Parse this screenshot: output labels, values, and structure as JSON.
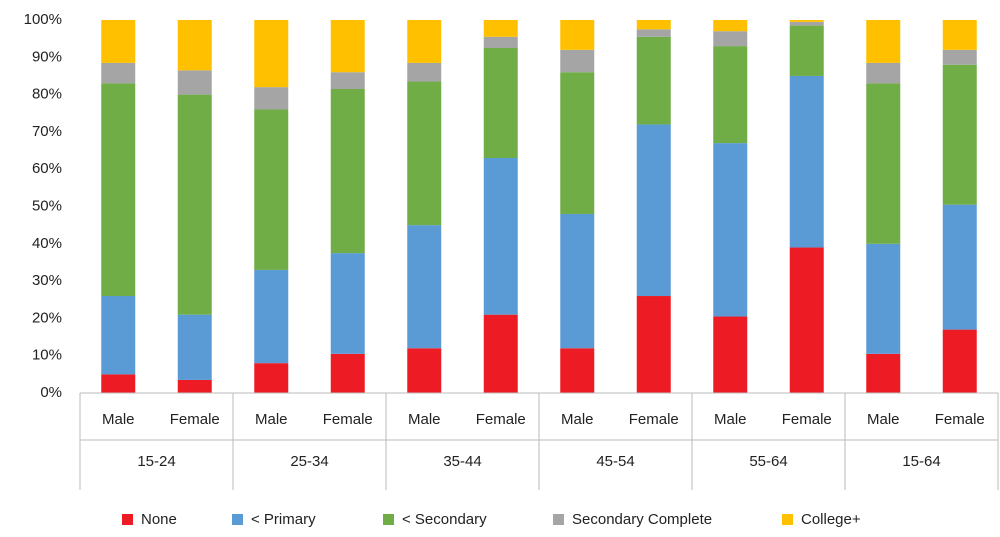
{
  "chart_data": {
    "type": "stacked_bar",
    "categories": [
      "Male",
      "Female",
      "Male",
      "Female",
      "Male",
      "Female",
      "Male",
      "Female",
      "Male",
      "Female",
      "Male",
      "Female"
    ],
    "groups": [
      "15-24",
      "25-34",
      "35-44",
      "45-54",
      "55-64",
      "15-64"
    ],
    "series": [
      {
        "name": "None",
        "color": "#ed1c24",
        "values": [
          5,
          3.5,
          8,
          10.5,
          12,
          21,
          12,
          26,
          20.5,
          39,
          10.5,
          17
        ]
      },
      {
        "name": "< Primary",
        "color": "#5b9bd5",
        "values": [
          21,
          17.5,
          25,
          27,
          33,
          42,
          36,
          46,
          46.5,
          46,
          29.5,
          33.5
        ]
      },
      {
        "name": "< Secondary",
        "color": "#70ad47",
        "values": [
          57,
          59,
          43,
          44,
          38.5,
          29.5,
          38,
          23.5,
          26,
          13.5,
          43,
          37.5
        ]
      },
      {
        "name": "Secondary Complete",
        "color": "#a5a5a5",
        "values": [
          5.5,
          6.5,
          6,
          4.5,
          5,
          3,
          6,
          2,
          4,
          1,
          5.5,
          4
        ]
      },
      {
        "name": "College+",
        "color": "#ffc000",
        "values": [
          11.5,
          13.5,
          18,
          14,
          11.5,
          4.5,
          8,
          2.5,
          3,
          0.5,
          11.5,
          8
        ]
      }
    ],
    "ylim": [
      0,
      100
    ],
    "yticks": [
      {
        "value": 0,
        "label": "0%"
      },
      {
        "value": 10,
        "label": "10%"
      },
      {
        "value": 20,
        "label": "20%"
      },
      {
        "value": 30,
        "label": "30%"
      },
      {
        "value": 40,
        "label": "40%"
      },
      {
        "value": 50,
        "label": "50%"
      },
      {
        "value": 60,
        "label": "60%"
      },
      {
        "value": 70,
        "label": "70%"
      },
      {
        "value": 80,
        "label": "80%"
      },
      {
        "value": 90,
        "label": "90%"
      },
      {
        "value": 100,
        "label": "100%"
      }
    ],
    "grid": false,
    "legend": "bottom"
  }
}
